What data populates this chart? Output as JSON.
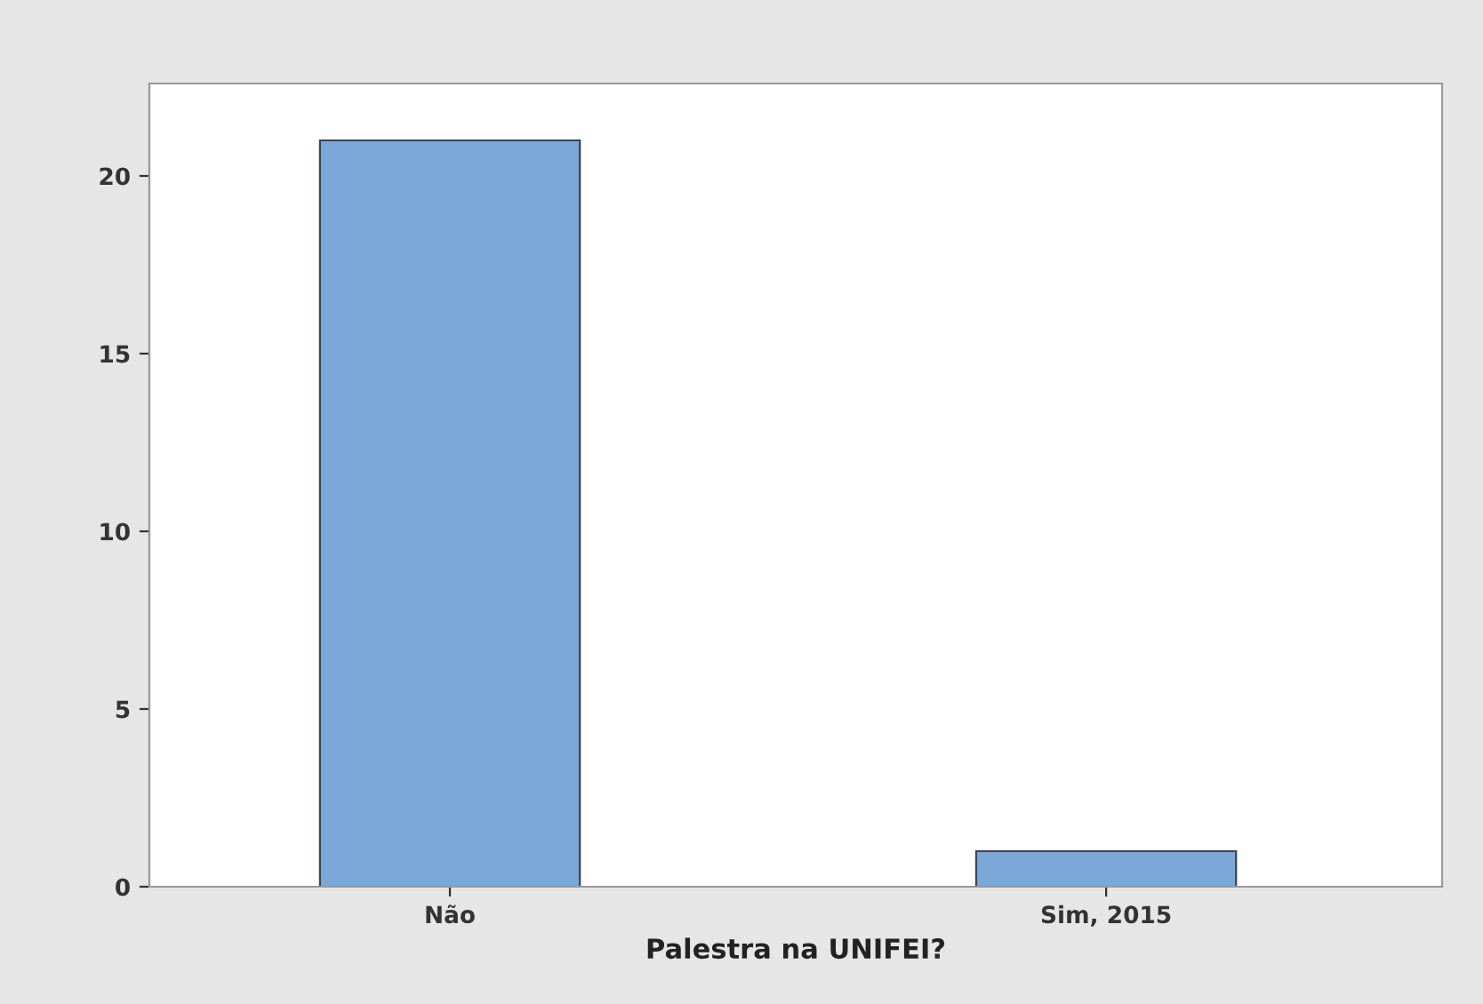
{
  "chart_data": {
    "type": "bar",
    "xlabel": "Palestra na UNIFEI?",
    "categories": [
      "Não",
      "Sim, 2015"
    ],
    "values": [
      21,
      1
    ],
    "color": "#7ba7d9",
    "ylim": [
      0,
      22.6
    ],
    "yticks": [
      0,
      5,
      10,
      15,
      20
    ],
    "grid": false
  }
}
